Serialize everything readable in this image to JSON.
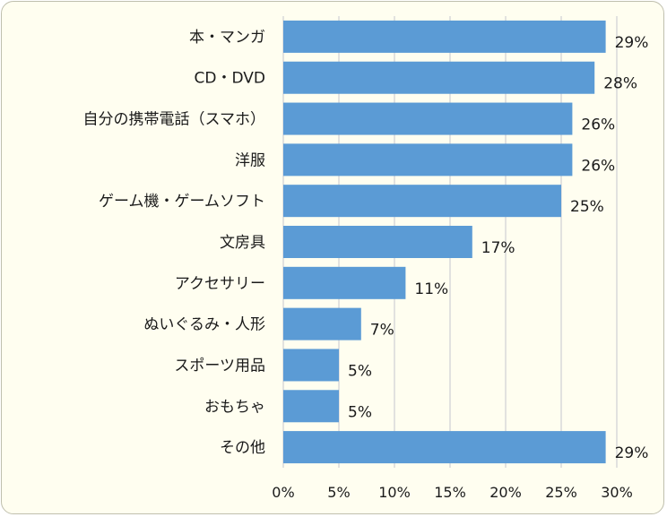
{
  "chart_data": {
    "type": "bar",
    "orientation": "horizontal",
    "title": "",
    "xlabel": "",
    "ylabel": "",
    "categories": [
      "本・マンガ",
      "CD・DVD",
      "自分の携帯電話（スマホ）",
      "洋服",
      "ゲーム機・ゲームソフト",
      "文房具",
      "アクセサリー",
      "ぬいぐるみ・人形",
      "スポーツ用品",
      "おもちゃ",
      "その他"
    ],
    "values": [
      29,
      28,
      26,
      26,
      25,
      17,
      11,
      7,
      5,
      5,
      29
    ],
    "value_labels": [
      "29%",
      "28%",
      "26%",
      "26%",
      "25%",
      "17%",
      "11%",
      "7%",
      "5%",
      "5%",
      "29%"
    ],
    "xlim": [
      0,
      30
    ],
    "xticks": [
      0,
      5,
      10,
      15,
      20,
      25,
      30
    ],
    "xtick_labels": [
      "0%",
      "5%",
      "10%",
      "15%",
      "20%",
      "25%",
      "30%"
    ],
    "grid": "vertical",
    "legend": "none",
    "colors": {
      "bar": "#5b9bd5",
      "grid": "#d9d9d9",
      "background": "#fffef0",
      "border": "#bfbfae"
    }
  }
}
